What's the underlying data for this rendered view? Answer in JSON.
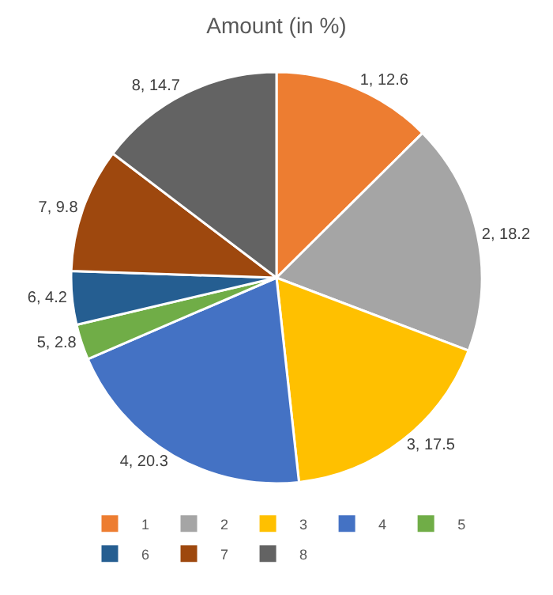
{
  "chart_data": {
    "type": "pie",
    "title": "Amount (in %)",
    "categories": [
      "1",
      "2",
      "3",
      "4",
      "5",
      "6",
      "7",
      "8"
    ],
    "values": [
      12.6,
      18.2,
      17.5,
      20.3,
      2.8,
      4.2,
      9.8,
      14.7
    ],
    "colors": [
      "#ed7d31",
      "#a5a5a5",
      "#ffc000",
      "#4472c4",
      "#70ad47",
      "#255e91",
      "#9e480e",
      "#636363"
    ],
    "value_labels": [
      "1, 12.6",
      "2, 18.2",
      "3, 17.5",
      "4, 20.3",
      "5, 2.8",
      "6, 4.2",
      "7, 9.8",
      "8, 14.7"
    ],
    "legend": "bottom"
  }
}
